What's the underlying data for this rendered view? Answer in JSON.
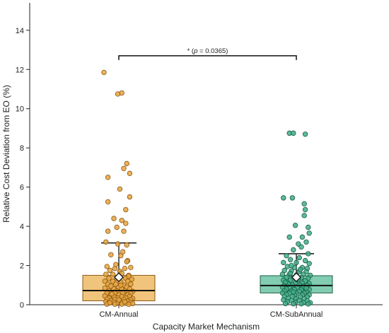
{
  "chart_data": {
    "type": "box_strip",
    "title": "",
    "xlabel": "Capacity Market Mechanism",
    "ylabel": "Relative Cost Deviation from EO (%)",
    "ylim": [
      0,
      15.4
    ],
    "yticks": [
      "0",
      "2",
      "4",
      "6",
      "8",
      "10",
      "12",
      "14"
    ],
    "ytick_values": [
      0,
      2,
      4,
      6,
      8,
      10,
      12,
      14
    ],
    "categories": [
      "CM-Annual",
      "CM-SubAnnual"
    ],
    "grid": false,
    "significance": {
      "text": "* (p = 0.0365)",
      "prefix": "* (",
      "p_symbol": "p",
      "suffix": " = 0.0365)",
      "y": 12.7
    },
    "series": [
      {
        "label": "CM-Annual",
        "fill": "#f0c47a",
        "dot_fill": "#e7a33e",
        "dot_edge": "#8a5a14",
        "box": {
          "q1": 0.2,
          "median": 0.72,
          "q3": 1.5,
          "whisker_low": 0.0,
          "whisker_high": 3.15,
          "mean": 1.4
        },
        "points": [
          [
            -0.15,
            11.85
          ],
          [
            -0.01,
            10.75
          ],
          [
            0.03,
            10.8
          ],
          [
            0.08,
            7.2
          ],
          [
            0.05,
            6.95
          ],
          [
            0.11,
            6.7
          ],
          [
            -0.11,
            6.5
          ],
          [
            0.01,
            5.9
          ],
          [
            0.11,
            5.5
          ],
          [
            -0.11,
            5.25
          ],
          [
            0.07,
            4.85
          ],
          [
            0.03,
            4.3
          ],
          [
            -0.05,
            4.4
          ],
          [
            0.07,
            4.15
          ],
          [
            -0.11,
            3.75
          ],
          [
            -0.02,
            3.95
          ],
          [
            0.05,
            3.75
          ],
          [
            -0.13,
            3.2
          ],
          [
            -0.01,
            3.1
          ],
          [
            0.08,
            3.05
          ],
          [
            0.02,
            2.5
          ],
          [
            0.09,
            2.25
          ],
          [
            -0.08,
            2.55
          ],
          [
            0.04,
            2.7
          ],
          [
            0.08,
            2.2
          ],
          [
            -0.12,
            1.95
          ],
          [
            -0.04,
            1.85
          ],
          [
            0.06,
            1.85
          ],
          [
            0.12,
            1.9
          ],
          [
            -0.09,
            1.75
          ],
          [
            0.01,
            1.7
          ],
          [
            -0.13,
            1.55
          ],
          [
            -0.06,
            1.55
          ],
          [
            0.03,
            1.6
          ],
          [
            0.1,
            1.5
          ],
          [
            -0.1,
            1.35
          ],
          [
            -0.02,
            1.35
          ],
          [
            0.07,
            1.35
          ],
          [
            0.13,
            1.3
          ],
          [
            -0.14,
            1.2
          ],
          [
            -0.06,
            1.2
          ],
          [
            0.02,
            1.15
          ],
          [
            0.09,
            1.2
          ],
          [
            -0.11,
            1.05
          ],
          [
            -0.03,
            1.05
          ],
          [
            0.05,
            1.0
          ],
          [
            0.12,
            1.05
          ],
          [
            -0.08,
            0.95
          ],
          [
            0.0,
            0.9
          ],
          [
            0.08,
            0.9
          ],
          [
            -0.14,
            0.85
          ],
          [
            -0.05,
            0.8
          ],
          [
            0.03,
            0.8
          ],
          [
            0.11,
            0.8
          ],
          [
            -0.1,
            0.72
          ],
          [
            -0.02,
            0.7
          ],
          [
            0.06,
            0.7
          ],
          [
            0.14,
            0.68
          ],
          [
            -0.12,
            0.6
          ],
          [
            -0.04,
            0.6
          ],
          [
            0.04,
            0.6
          ],
          [
            0.12,
            0.58
          ],
          [
            -0.08,
            0.52
          ],
          [
            0.0,
            0.5
          ],
          [
            0.09,
            0.5
          ],
          [
            -0.14,
            0.45
          ],
          [
            -0.05,
            0.42
          ],
          [
            0.03,
            0.42
          ],
          [
            0.11,
            0.42
          ],
          [
            -0.1,
            0.35
          ],
          [
            -0.01,
            0.35
          ],
          [
            0.07,
            0.35
          ],
          [
            0.14,
            0.32
          ],
          [
            -0.12,
            0.28
          ],
          [
            -0.04,
            0.27
          ],
          [
            0.05,
            0.27
          ],
          [
            0.12,
            0.25
          ],
          [
            -0.08,
            0.2
          ],
          [
            0.01,
            0.2
          ],
          [
            0.09,
            0.18
          ],
          [
            -0.13,
            0.15
          ],
          [
            -0.05,
            0.13
          ],
          [
            0.04,
            0.13
          ],
          [
            0.12,
            0.12
          ],
          [
            -0.1,
            0.08
          ],
          [
            -0.02,
            0.07
          ],
          [
            0.07,
            0.07
          ],
          [
            0.14,
            0.06
          ],
          [
            -0.12,
            0.03
          ],
          [
            -0.04,
            0.03
          ],
          [
            0.03,
            0.03
          ],
          [
            0.1,
            0.02
          ],
          [
            -0.07,
            0.55
          ],
          [
            0.02,
            1.0
          ],
          [
            0.1,
            1.45
          ],
          [
            -0.03,
            2.05
          ],
          [
            0.06,
            0.15
          ],
          [
            -0.09,
            0.1
          ],
          [
            0.0,
            0.25
          ]
        ]
      },
      {
        "label": "CM-SubAnnual",
        "fill": "#82cdb2",
        "dot_fill": "#3fae88",
        "dot_edge": "#1b5e46",
        "box": {
          "q1": 0.6,
          "median": 0.98,
          "q3": 1.48,
          "whisker_low": 0.0,
          "whisker_high": 2.6,
          "mean": 1.4
        },
        "points": [
          [
            -0.07,
            8.75
          ],
          [
            -0.03,
            8.75
          ],
          [
            0.09,
            8.7
          ],
          [
            -0.13,
            5.45
          ],
          [
            -0.04,
            5.45
          ],
          [
            0.08,
            5.15
          ],
          [
            0.09,
            4.85
          ],
          [
            0.08,
            4.55
          ],
          [
            -0.01,
            4.05
          ],
          [
            0.12,
            3.95
          ],
          [
            0.13,
            3.65
          ],
          [
            0.06,
            3.45
          ],
          [
            -0.07,
            3.45
          ],
          [
            0.1,
            3.2
          ],
          [
            0.02,
            3.1
          ],
          [
            0.05,
            2.95
          ],
          [
            -0.03,
            2.8
          ],
          [
            -0.1,
            2.5
          ],
          [
            0.12,
            2.6
          ],
          [
            0.03,
            2.4
          ],
          [
            -0.06,
            2.3
          ],
          [
            0.09,
            2.25
          ],
          [
            -0.13,
            2.15
          ],
          [
            0.0,
            2.15
          ],
          [
            0.13,
            2.1
          ],
          [
            -0.09,
            1.95
          ],
          [
            -0.02,
            1.9
          ],
          [
            0.06,
            1.9
          ],
          [
            0.11,
            1.85
          ],
          [
            -0.12,
            1.75
          ],
          [
            -0.05,
            1.72
          ],
          [
            0.03,
            1.7
          ],
          [
            0.1,
            1.68
          ],
          [
            -0.14,
            1.55
          ],
          [
            -0.07,
            1.55
          ],
          [
            0.0,
            1.52
          ],
          [
            0.07,
            1.55
          ],
          [
            0.14,
            1.5
          ],
          [
            -0.1,
            1.4
          ],
          [
            -0.03,
            1.38
          ],
          [
            0.05,
            1.38
          ],
          [
            0.12,
            1.35
          ],
          [
            -0.13,
            1.25
          ],
          [
            -0.06,
            1.25
          ],
          [
            0.01,
            1.22
          ],
          [
            0.09,
            1.22
          ],
          [
            -0.09,
            1.12
          ],
          [
            -0.01,
            1.12
          ],
          [
            0.06,
            1.1
          ],
          [
            0.13,
            1.08
          ],
          [
            -0.12,
            1.0
          ],
          [
            -0.04,
            1.0
          ],
          [
            0.04,
            0.98
          ],
          [
            0.11,
            0.98
          ],
          [
            -0.14,
            0.9
          ],
          [
            -0.07,
            0.88
          ],
          [
            0.01,
            0.88
          ],
          [
            0.08,
            0.88
          ],
          [
            -0.1,
            0.8
          ],
          [
            -0.02,
            0.78
          ],
          [
            0.05,
            0.78
          ],
          [
            0.13,
            0.78
          ],
          [
            -0.12,
            0.7
          ],
          [
            -0.05,
            0.7
          ],
          [
            0.03,
            0.68
          ],
          [
            0.1,
            0.68
          ],
          [
            -0.14,
            0.6
          ],
          [
            -0.07,
            0.6
          ],
          [
            0.0,
            0.58
          ],
          [
            0.08,
            0.6
          ],
          [
            -0.1,
            0.52
          ],
          [
            -0.02,
            0.5
          ],
          [
            0.06,
            0.5
          ],
          [
            0.13,
            0.5
          ],
          [
            -0.12,
            0.42
          ],
          [
            -0.04,
            0.42
          ],
          [
            0.04,
            0.4
          ],
          [
            0.11,
            0.4
          ],
          [
            -0.08,
            0.32
          ],
          [
            0.0,
            0.3
          ],
          [
            0.08,
            0.3
          ],
          [
            -0.13,
            0.25
          ],
          [
            -0.05,
            0.22
          ],
          [
            0.03,
            0.22
          ],
          [
            0.11,
            0.2
          ],
          [
            -0.09,
            0.15
          ],
          [
            -0.01,
            0.12
          ],
          [
            0.07,
            0.12
          ],
          [
            0.14,
            0.1
          ],
          [
            -0.11,
            0.06
          ],
          [
            -0.03,
            0.05
          ],
          [
            0.05,
            0.05
          ],
          [
            0.12,
            0.04
          ],
          [
            -0.06,
            1.6
          ],
          [
            0.02,
            1.3
          ],
          [
            -0.08,
            1.05
          ],
          [
            0.07,
            0.95
          ],
          [
            -0.03,
            0.65
          ],
          [
            0.1,
            0.85
          ],
          [
            -0.11,
            1.15
          ],
          [
            0.04,
            1.8
          ],
          [
            -0.05,
            2.0
          ]
        ]
      }
    ]
  }
}
